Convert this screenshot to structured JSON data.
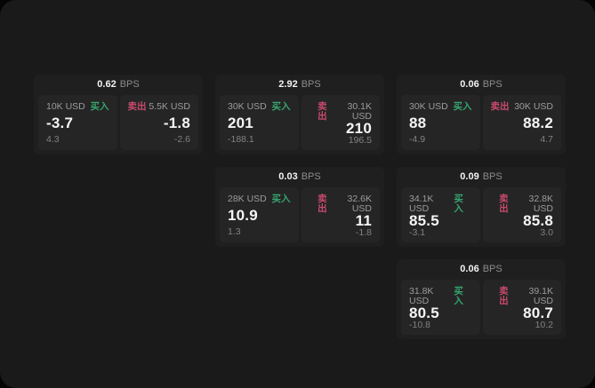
{
  "labels": {
    "bps_unit": "BPS",
    "buy": "买入",
    "sell": "卖出"
  },
  "colors": {
    "background": "#050505",
    "surface": "#1a1a1b",
    "card": "#1f1f20",
    "panel": "#252526",
    "buy_accent": "#36a56c",
    "sell_accent": "#c84a6b"
  },
  "cards": [
    {
      "bps": "0.62",
      "buy": {
        "size": "10K USD",
        "value": "-3.7",
        "delta": "4.3"
      },
      "sell": {
        "size": "5.5K USD",
        "value": "-1.8",
        "delta": "-2.6"
      }
    },
    {
      "bps": "2.92",
      "buy": {
        "size": "30K USD",
        "value": "201",
        "delta": "-188.1"
      },
      "sell": {
        "size": "30.1K USD",
        "value": "210",
        "delta": "196.5"
      }
    },
    {
      "bps": "0.06",
      "buy": {
        "size": "30K USD",
        "value": "88",
        "delta": "-4.9"
      },
      "sell": {
        "size": "30K USD",
        "value": "88.2",
        "delta": "4.7"
      }
    },
    {
      "bps": "0.03",
      "buy": {
        "size": "28K USD",
        "value": "10.9",
        "delta": "1.3"
      },
      "sell": {
        "size": "32.6K USD",
        "value": "11",
        "delta": "-1.8"
      }
    },
    {
      "bps": "0.09",
      "buy": {
        "size": "34.1K USD",
        "value": "85.5",
        "delta": "-3.1"
      },
      "sell": {
        "size": "32.8K USD",
        "value": "85.8",
        "delta": "3.0"
      }
    },
    {
      "bps": "0.06",
      "buy": {
        "size": "31.8K USD",
        "value": "80.5",
        "delta": "-10.8"
      },
      "sell": {
        "size": "39.1K USD",
        "value": "80.7",
        "delta": "10.2"
      }
    }
  ]
}
